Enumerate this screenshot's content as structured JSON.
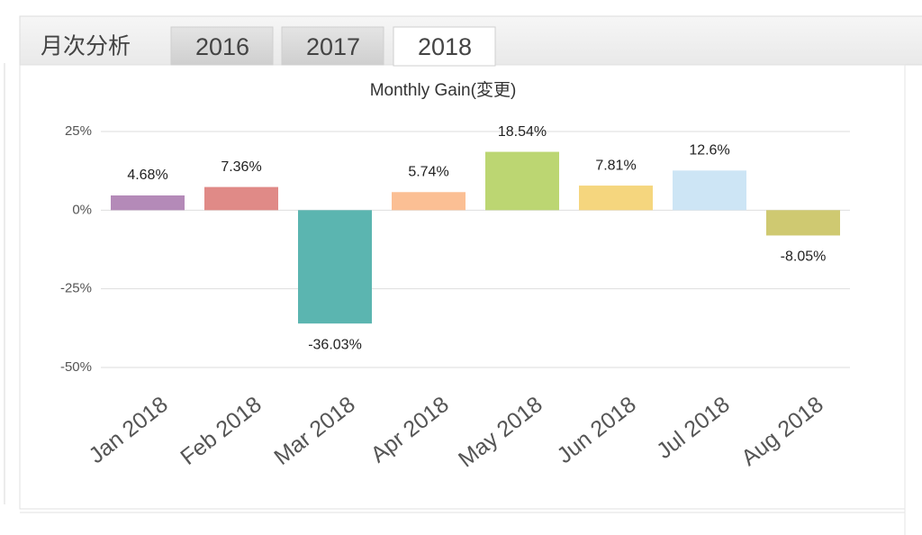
{
  "header": {
    "title": "月次分析",
    "tabs": [
      "2016",
      "2017",
      "2018"
    ],
    "active_tab": "2018"
  },
  "chart_data": {
    "type": "bar",
    "title": "Monthly Gain(変更)",
    "categories": [
      "Jan 2018",
      "Feb 2018",
      "Mar 2018",
      "Apr 2018",
      "May 2018",
      "Jun 2018",
      "Jul 2018",
      "Aug 2018"
    ],
    "values": [
      4.68,
      7.36,
      -36.03,
      5.74,
      18.54,
      7.81,
      12.6,
      -8.05
    ],
    "value_labels": [
      "4.68%",
      "7.36%",
      "-36.03%",
      "5.74%",
      "18.54%",
      "7.81%",
      "12.6%",
      "-8.05%"
    ],
    "colors": [
      "#b48ab8",
      "#e08a87",
      "#5bb5b0",
      "#fbbf94",
      "#bcd672",
      "#f5d67e",
      "#cde5f5",
      "#cfc971"
    ],
    "ylim": [
      -50,
      25
    ],
    "yticks": [
      {
        "value": -50,
        "label": "-50%"
      },
      {
        "value": -25,
        "label": "-25%"
      },
      {
        "value": 0,
        "label": "0%"
      },
      {
        "value": 25,
        "label": "25%"
      }
    ],
    "grid": true
  }
}
